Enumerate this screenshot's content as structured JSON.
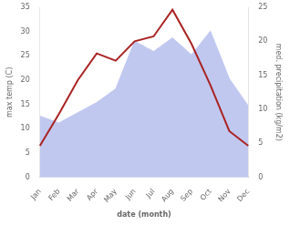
{
  "chart_data": {
    "type": "line",
    "categories": [
      "Jan",
      "Feb",
      "Mar",
      "Apr",
      "May",
      "Jun",
      "Jul",
      "Aug",
      "Sep",
      "Oct",
      "Nov",
      "Dec"
    ],
    "xlabel": "date (month)",
    "ylabel": "max temp (C)",
    "y2label": "med. precipitation (kg/m2)",
    "ylim": [
      0,
      35
    ],
    "yticks": [
      0,
      5,
      10,
      15,
      20,
      25,
      30,
      35
    ],
    "y2lim": [
      0,
      25
    ],
    "y2ticks": [
      0,
      5,
      10,
      15,
      20,
      25
    ],
    "grid": false,
    "series": [
      {
        "type": "area",
        "color": "#c0c8f0",
        "axis": "y2",
        "values": [
          9.0,
          8.0,
          9.5,
          11.0,
          13.0,
          20.0,
          18.5,
          20.5,
          18.0,
          21.5,
          14.5,
          10.5
        ]
      },
      {
        "type": "line",
        "color": "#aa2222",
        "values": [
          6.5,
          13.0,
          20.0,
          25.5,
          24.0,
          28.0,
          29.0,
          34.5,
          27.5,
          19.0,
          9.5,
          6.5
        ]
      }
    ]
  }
}
